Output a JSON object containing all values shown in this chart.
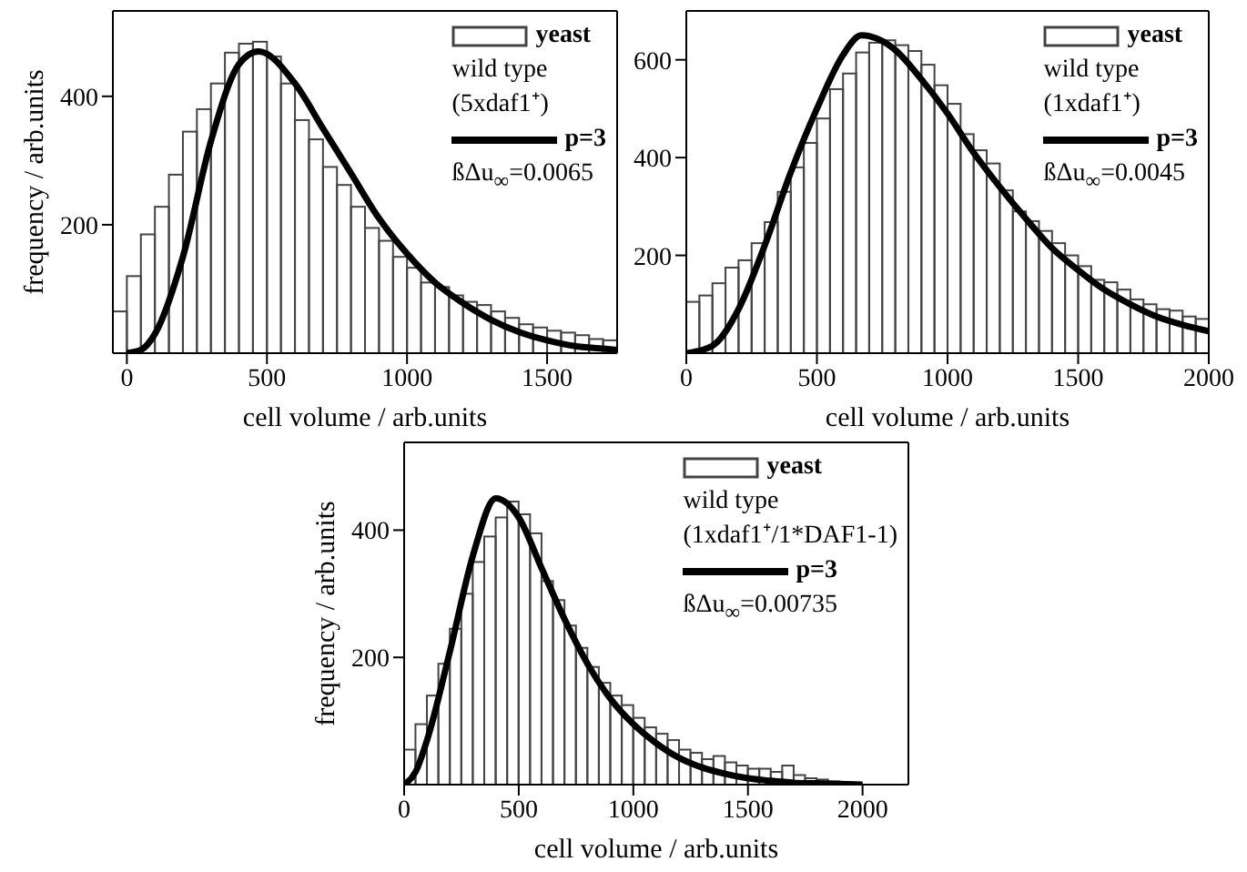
{
  "chart_data": [
    {
      "type": "histogram",
      "xlabel": "cell volume / arb.units",
      "ylabel": "frequency / arb.units",
      "xlim": [
        -50,
        1750
      ],
      "xticks": [
        0,
        500,
        1000,
        1500
      ],
      "ylim": [
        0,
        533
      ],
      "yticks": [
        200,
        400
      ],
      "legend": "top right",
      "annotations": [
        "wild type",
        "(5xdaf1⁺)",
        "ßΔu$_{∞}$=0.0065"
      ],
      "bins": [
        -50,
        0,
        50,
        100,
        150,
        200,
        250,
        300,
        350,
        400,
        450,
        500,
        550,
        600,
        650,
        700,
        750,
        800,
        850,
        900,
        950,
        1000,
        1050,
        1100,
        1150,
        1200,
        1250,
        1300,
        1350,
        1400,
        1450,
        1500,
        1550,
        1600,
        1650,
        1700,
        1750
      ],
      "series": [
        {
          "name": "yeast",
          "color": "#444444",
          "values": [
            65,
            120,
            185,
            228,
            278,
            345,
            380,
            420,
            468,
            482,
            485,
            462,
            420,
            363,
            333,
            290,
            262,
            228,
            195,
            175,
            150,
            133,
            110,
            103,
            90,
            80,
            75,
            65,
            55,
            45,
            40,
            35,
            32,
            28,
            22,
            20
          ]
        },
        {
          "name": "p=3",
          "type": "line",
          "color": "#000000",
          "x": [
            0,
            50,
            100,
            200,
            300,
            400,
            470,
            600,
            700,
            800,
            900,
            1000,
            1100,
            1200,
            1300,
            1400,
            1500,
            1600,
            1700,
            1750
          ],
          "values": [
            0,
            5,
            30,
            150,
            330,
            450,
            470,
            420,
            350,
            280,
            210,
            155,
            110,
            78,
            52,
            33,
            20,
            11,
            7,
            5
          ]
        }
      ]
    },
    {
      "type": "histogram",
      "xlabel": "cell volume / arb.units",
      "xlim": [
        0,
        2000
      ],
      "xticks": [
        0,
        500,
        1000,
        1500,
        2000
      ],
      "ylim": [
        0,
        700
      ],
      "yticks": [
        200,
        400,
        600
      ],
      "legend": "top right",
      "annotations": [
        "wild type",
        "(1xdaf1⁺)",
        "ßΔu$_{∞}$=0.0045"
      ],
      "bins": [
        0,
        50,
        100,
        150,
        200,
        250,
        300,
        350,
        400,
        450,
        500,
        550,
        600,
        650,
        700,
        750,
        800,
        850,
        900,
        950,
        1000,
        1050,
        1100,
        1150,
        1200,
        1250,
        1300,
        1350,
        1400,
        1450,
        1500,
        1550,
        1600,
        1650,
        1700,
        1750,
        1800,
        1850,
        1900,
        1950,
        2000
      ],
      "series": [
        {
          "name": "yeast",
          "color": "#444444",
          "values": [
            105,
            118,
            143,
            175,
            190,
            225,
            268,
            330,
            380,
            430,
            480,
            540,
            572,
            615,
            635,
            640,
            630,
            618,
            590,
            548,
            510,
            448,
            415,
            388,
            333,
            290,
            270,
            250,
            225,
            200,
            178,
            150,
            145,
            130,
            110,
            100,
            90,
            87,
            75,
            70
          ]
        },
        {
          "name": "p=3",
          "type": "line",
          "color": "#000000",
          "x": [
            0,
            100,
            200,
            300,
            400,
            500,
            600,
            670,
            800,
            900,
            1000,
            1100,
            1200,
            1300,
            1400,
            1500,
            1600,
            1700,
            1800,
            1900,
            2000
          ],
          "values": [
            0,
            15,
            90,
            220,
            370,
            500,
            610,
            650,
            620,
            560,
            490,
            410,
            340,
            275,
            215,
            170,
            130,
            100,
            75,
            58,
            45
          ]
        }
      ]
    },
    {
      "type": "histogram",
      "xlabel": "cell volume / arb.units",
      "ylabel": "frequency / arb.units",
      "xlim": [
        0,
        2200
      ],
      "xticks": [
        0,
        500,
        1000,
        1500,
        2000
      ],
      "ylim": [
        0,
        538
      ],
      "yticks": [
        200,
        400
      ],
      "legend": "top right",
      "annotations": [
        "wild type",
        "(1xdaf1⁺/1*DAF1-1)",
        "ßΔu$_{∞}$=0.00735"
      ],
      "bins": [
        0,
        50,
        100,
        150,
        200,
        250,
        300,
        350,
        400,
        450,
        500,
        550,
        600,
        650,
        700,
        750,
        800,
        850,
        900,
        950,
        1000,
        1050,
        1100,
        1150,
        1200,
        1250,
        1300,
        1350,
        1400,
        1450,
        1500,
        1550,
        1600,
        1650,
        1700,
        1750,
        1800,
        1850,
        1900
      ],
      "series": [
        {
          "name": "yeast",
          "color": "#444444",
          "values": [
            55,
            95,
            140,
            190,
            245,
            300,
            350,
            390,
            420,
            445,
            425,
            395,
            320,
            290,
            250,
            215,
            185,
            160,
            140,
            125,
            105,
            90,
            80,
            70,
            55,
            50,
            40,
            45,
            35,
            30,
            25,
            25,
            20,
            30,
            15,
            10,
            8,
            5
          ]
        },
        {
          "name": "p=3",
          "type": "line",
          "color": "#000000",
          "x": [
            0,
            50,
            100,
            200,
            300,
            400,
            500,
            600,
            700,
            800,
            900,
            1000,
            1100,
            1200,
            1300,
            1400,
            1500,
            1600,
            1700,
            1800,
            1900,
            2000
          ],
          "values": [
            0,
            20,
            70,
            210,
            360,
            450,
            420,
            340,
            260,
            190,
            135,
            95,
            65,
            42,
            27,
            17,
            10,
            6,
            3,
            2,
            1,
            0
          ]
        }
      ]
    }
  ]
}
